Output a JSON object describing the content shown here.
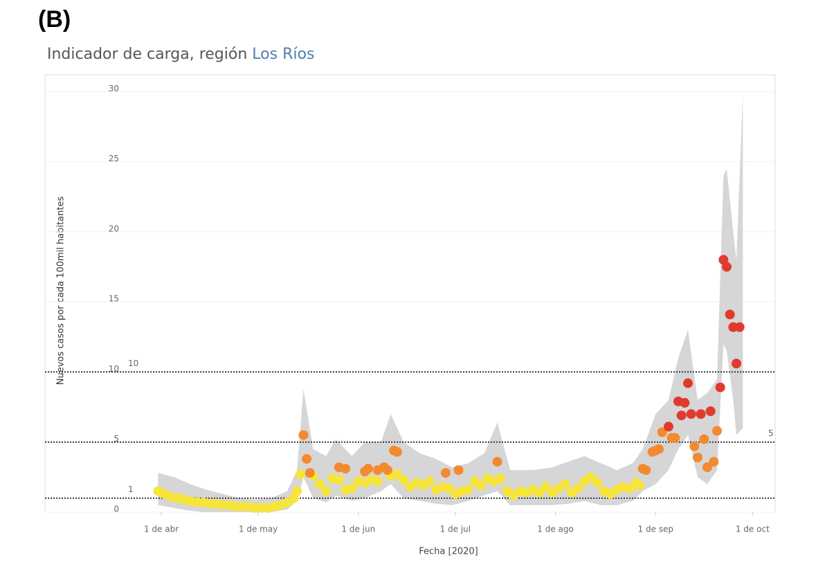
{
  "chart_data": {
    "type": "scatter",
    "panel": "(B)",
    "title": "Indicador de carga, región",
    "title_region": "Los Ríos",
    "xlabel": "Fecha [2020]",
    "ylabel": "Nuevos casos por cada 100mil habitantes",
    "xlim": [
      "2020-02-25",
      "2020-10-08"
    ],
    "ylim": [
      0,
      31.2
    ],
    "yticks": [
      0,
      5,
      10,
      15,
      20,
      25,
      30
    ],
    "xticks": [
      {
        "value": "2020-04-01",
        "label": "1 de abr"
      },
      {
        "value": "2020-05-01",
        "label": "1 de may"
      },
      {
        "value": "2020-06-01",
        "label": "1 de jun"
      },
      {
        "value": "2020-07-01",
        "label": "1 de jul"
      },
      {
        "value": "2020-08-01",
        "label": "1 de ago"
      },
      {
        "value": "2020-09-01",
        "label": "1 de sep"
      },
      {
        "value": "2020-10-01",
        "label": "1 de oct"
      }
    ],
    "grid": true,
    "reference_lines": [
      {
        "value": 1,
        "label": 1,
        "label_pos": "left"
      },
      {
        "value": 5,
        "label": 5,
        "label_pos": "right"
      },
      {
        "value": 10,
        "label": 10,
        "label_pos": "left"
      }
    ],
    "band": {
      "color": "#d2d2d2",
      "x": [
        "2020-03-31",
        "2020-04-05",
        "2020-04-10",
        "2020-04-15",
        "2020-04-20",
        "2020-04-25",
        "2020-04-30",
        "2020-05-05",
        "2020-05-10",
        "2020-05-13",
        "2020-05-15",
        "2020-05-18",
        "2020-05-22",
        "2020-05-25",
        "2020-05-30",
        "2020-06-03",
        "2020-06-08",
        "2020-06-11",
        "2020-06-15",
        "2020-06-20",
        "2020-06-25",
        "2020-06-30",
        "2020-07-05",
        "2020-07-10",
        "2020-07-14",
        "2020-07-18",
        "2020-07-25",
        "2020-07-31",
        "2020-08-05",
        "2020-08-10",
        "2020-08-15",
        "2020-08-20",
        "2020-08-25",
        "2020-08-28",
        "2020-09-01",
        "2020-09-05",
        "2020-09-08",
        "2020-09-11",
        "2020-09-14",
        "2020-09-17",
        "2020-09-20",
        "2020-09-22",
        "2020-09-23",
        "2020-09-25",
        "2020-09-26",
        "2020-09-28"
      ],
      "lower": [
        0.5,
        0.3,
        0.1,
        0,
        0,
        0,
        0,
        0,
        0.2,
        0.8,
        2.5,
        1.0,
        0.7,
        1.2,
        0.8,
        1.0,
        1.5,
        2.0,
        1.0,
        0.8,
        0.6,
        0.5,
        0.8,
        1.2,
        1.5,
        0.5,
        0.5,
        0.5,
        0.6,
        0.8,
        0.5,
        0.5,
        0.8,
        1.5,
        2.0,
        3.0,
        4.5,
        5.5,
        2.5,
        2.0,
        3.0,
        12.0,
        11.5,
        8.0,
        5.5,
        6.0
      ],
      "upper": [
        2.8,
        2.5,
        2.0,
        1.6,
        1.3,
        1.0,
        0.9,
        1.0,
        1.5,
        3.0,
        8.8,
        4.5,
        4.0,
        5.2,
        4.0,
        5.0,
        5.0,
        7.0,
        5.0,
        4.2,
        3.8,
        3.2,
        3.5,
        4.2,
        6.4,
        3.0,
        3.0,
        3.2,
        3.6,
        4.0,
        3.5,
        3.0,
        3.5,
        4.5,
        7.0,
        8.0,
        11.0,
        13.0,
        8.0,
        8.5,
        9.5,
        24.0,
        24.5,
        20.0,
        18.0,
        29.8
      ]
    },
    "series": [
      {
        "color": "#f7e53b",
        "x": [
          "2020-03-31",
          "2020-04-02",
          "2020-04-04",
          "2020-04-06",
          "2020-04-08",
          "2020-04-10",
          "2020-04-12",
          "2020-04-14",
          "2020-04-16",
          "2020-04-18",
          "2020-04-20",
          "2020-04-22",
          "2020-04-24",
          "2020-04-26",
          "2020-04-28",
          "2020-04-30",
          "2020-05-02",
          "2020-05-04",
          "2020-05-06",
          "2020-05-08",
          "2020-05-10",
          "2020-05-12",
          "2020-05-13",
          "2020-05-14",
          "2020-05-18",
          "2020-05-20",
          "2020-05-22",
          "2020-05-24",
          "2020-05-26",
          "2020-05-28",
          "2020-05-30",
          "2020-06-01",
          "2020-06-03",
          "2020-06-05",
          "2020-06-07",
          "2020-06-11",
          "2020-06-13",
          "2020-06-15",
          "2020-06-17",
          "2020-06-19",
          "2020-06-21",
          "2020-06-23",
          "2020-06-25",
          "2020-06-27",
          "2020-06-29",
          "2020-07-01",
          "2020-07-03",
          "2020-07-05",
          "2020-07-07",
          "2020-07-09",
          "2020-07-11",
          "2020-07-13",
          "2020-07-15",
          "2020-07-17",
          "2020-07-19",
          "2020-07-21",
          "2020-07-23",
          "2020-07-25",
          "2020-07-27",
          "2020-07-29",
          "2020-07-31",
          "2020-08-02",
          "2020-08-04",
          "2020-08-06",
          "2020-08-08",
          "2020-08-10",
          "2020-08-12",
          "2020-08-14",
          "2020-08-16",
          "2020-08-18",
          "2020-08-20",
          "2020-08-22",
          "2020-08-24",
          "2020-08-26",
          "2020-08-27"
        ],
        "values": [
          1.5,
          1.3,
          1.1,
          1.0,
          0.9,
          0.8,
          0.7,
          0.7,
          0.6,
          0.6,
          0.5,
          0.5,
          0.4,
          0.4,
          0.4,
          0.3,
          0.3,
          0.3,
          0.4,
          0.5,
          0.7,
          1.0,
          1.5,
          2.7,
          2.6,
          2.0,
          1.5,
          2.4,
          2.3,
          1.6,
          1.7,
          2.2,
          2.1,
          2.3,
          2.2,
          2.6,
          2.7,
          2.3,
          1.8,
          2.1,
          1.9,
          2.2,
          1.6,
          1.8,
          1.7,
          1.3,
          1.5,
          1.6,
          2.2,
          1.9,
          2.4,
          2.2,
          2.4,
          1.5,
          1.2,
          1.5,
          1.4,
          1.6,
          1.4,
          1.8,
          1.4,
          1.7,
          2.0,
          1.4,
          1.7,
          2.2,
          2.5,
          2.1,
          1.5,
          1.3,
          1.6,
          1.8,
          1.7,
          2.1,
          1.9
        ]
      },
      {
        "color": "#f28a30",
        "x": [
          "2020-05-15",
          "2020-05-16",
          "2020-05-17",
          "2020-05-26",
          "2020-05-28",
          "2020-06-03",
          "2020-06-04",
          "2020-06-07",
          "2020-06-09",
          "2020-06-10",
          "2020-06-12",
          "2020-06-13",
          "2020-06-28",
          "2020-07-02",
          "2020-07-14",
          "2020-08-28",
          "2020-08-29",
          "2020-08-31",
          "2020-09-01",
          "2020-09-02",
          "2020-09-03",
          "2020-09-06",
          "2020-09-07",
          "2020-09-13",
          "2020-09-14",
          "2020-09-16",
          "2020-09-17",
          "2020-09-19",
          "2020-09-20"
        ],
        "values": [
          5.5,
          3.8,
          2.8,
          3.2,
          3.1,
          2.9,
          3.1,
          3.0,
          3.2,
          3.0,
          4.4,
          4.3,
          2.8,
          3.0,
          3.6,
          3.1,
          3.0,
          4.3,
          4.4,
          4.5,
          5.7,
          5.3,
          5.3,
          4.7,
          3.9,
          5.2,
          3.2,
          3.6,
          5.8
        ]
      },
      {
        "color": "#e03a2f",
        "x": [
          "2020-09-05",
          "2020-09-08",
          "2020-09-09",
          "2020-09-10",
          "2020-09-11",
          "2020-09-12",
          "2020-09-15",
          "2020-09-18",
          "2020-09-21",
          "2020-09-22",
          "2020-09-23",
          "2020-09-24",
          "2020-09-25",
          "2020-09-26",
          "2020-09-27"
        ],
        "values": [
          6.1,
          7.9,
          6.9,
          7.8,
          9.2,
          7.0,
          7.0,
          7.2,
          8.9,
          18.0,
          17.5,
          14.1,
          13.2,
          10.6,
          13.2
        ]
      }
    ]
  }
}
